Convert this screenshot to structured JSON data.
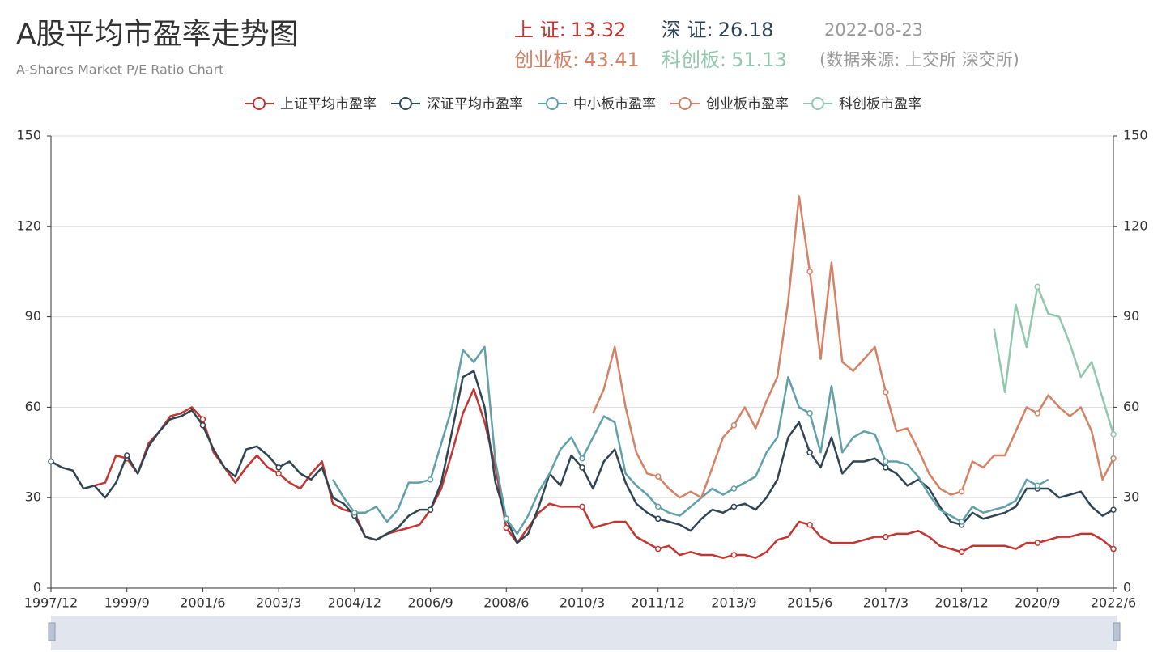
{
  "chart_data": {
    "type": "line",
    "title": "A股平均市盈率走势图",
    "subtitle": "A-Shares Market P/E Ratio Chart",
    "stats": [
      {
        "label": "上 证:",
        "value": 13.32,
        "color": "#c23531"
      },
      {
        "label": "深 证:",
        "value": 26.18,
        "color": "#2f4554"
      },
      {
        "label": "创业板:",
        "value": 43.41,
        "color": "#d48265"
      },
      {
        "label": "科创板:",
        "value": 51.13,
        "color": "#91c7ae"
      }
    ],
    "date": "2022-08-23",
    "source": "(数据来源: 上交所 深交所)",
    "categories": [
      "1997/12",
      null,
      null,
      null,
      null,
      null,
      null,
      "1999/9",
      null,
      null,
      null,
      null,
      null,
      null,
      "2001/6",
      null,
      null,
      null,
      null,
      null,
      null,
      "2003/3",
      null,
      null,
      null,
      null,
      null,
      null,
      "2004/12",
      null,
      null,
      null,
      null,
      null,
      null,
      "2006/9",
      null,
      null,
      null,
      null,
      null,
      null,
      "2008/6",
      null,
      null,
      null,
      null,
      null,
      null,
      "2010/3",
      null,
      null,
      null,
      null,
      null,
      null,
      "2011/12",
      null,
      null,
      null,
      null,
      null,
      null,
      "2013/9",
      null,
      null,
      null,
      null,
      null,
      null,
      "2015/6",
      null,
      null,
      null,
      null,
      null,
      null,
      "2017/3",
      null,
      null,
      null,
      null,
      null,
      null,
      "2018/12",
      null,
      null,
      null,
      null,
      null,
      null,
      "2020/9",
      null,
      null,
      null,
      null,
      null,
      null,
      "2022/6"
    ],
    "ylim": [
      0,
      150
    ],
    "yticks": [
      0,
      30,
      60,
      90,
      120,
      150
    ],
    "y2lim": [
      0,
      150
    ],
    "y2ticks": [
      0,
      30,
      60,
      90,
      120,
      150
    ],
    "grid": true,
    "legend": "top",
    "series": [
      {
        "name": "上证平均市盈率",
        "color": "#c23531",
        "values": [
          null,
          null,
          null,
          null,
          34,
          35,
          44,
          43,
          38,
          48,
          52,
          57,
          58,
          60,
          56,
          45,
          40,
          35,
          40,
          44,
          40,
          38,
          35,
          33,
          38,
          42,
          28,
          26,
          25,
          17,
          16,
          18,
          19,
          20,
          21,
          26,
          33,
          45,
          58,
          66,
          55,
          40,
          20,
          15,
          20,
          25,
          28,
          27,
          27,
          27,
          20,
          21,
          22,
          22,
          17,
          15,
          13,
          14,
          11,
          12,
          11,
          11,
          10,
          11,
          11,
          10,
          12,
          16,
          17,
          22,
          21,
          17,
          15,
          15,
          15,
          16,
          17,
          17,
          18,
          18,
          19,
          17,
          14,
          13,
          12,
          14,
          14,
          14,
          14,
          13,
          15,
          15,
          16,
          17,
          17,
          18,
          18,
          16,
          13
        ]
      },
      {
        "name": "深证平均市盈率",
        "color": "#2f4554",
        "values": [
          42,
          40,
          39,
          33,
          34,
          30,
          35,
          44,
          38,
          47,
          52,
          56,
          57,
          59,
          54,
          46,
          40,
          37,
          46,
          47,
          44,
          40,
          42,
          38,
          36,
          40,
          30,
          28,
          24,
          17,
          16,
          18,
          20,
          24,
          26,
          26,
          35,
          52,
          70,
          72,
          60,
          35,
          23,
          15,
          18,
          27,
          38,
          34,
          44,
          40,
          33,
          42,
          46,
          35,
          28,
          25,
          23,
          22,
          21,
          19,
          23,
          26,
          25,
          27,
          28,
          26,
          30,
          36,
          50,
          55,
          45,
          40,
          50,
          38,
          42,
          42,
          43,
          40,
          38,
          34,
          36,
          33,
          27,
          22,
          21,
          25,
          23,
          24,
          25,
          27,
          33,
          33,
          33,
          30,
          31,
          32,
          27,
          24,
          26
        ]
      },
      {
        "name": "中小板市盈率",
        "color": "#61a0a8",
        "values": [
          null,
          null,
          null,
          null,
          null,
          null,
          null,
          null,
          null,
          null,
          null,
          null,
          null,
          null,
          null,
          null,
          null,
          null,
          null,
          null,
          null,
          null,
          null,
          null,
          null,
          null,
          36,
          30,
          25,
          25,
          27,
          22,
          26,
          35,
          35,
          36,
          48,
          60,
          79,
          75,
          80,
          42,
          23,
          18,
          24,
          32,
          38,
          46,
          50,
          43,
          50,
          57,
          55,
          38,
          34,
          31,
          27,
          25,
          24,
          27,
          30,
          33,
          31,
          33,
          35,
          37,
          45,
          50,
          70,
          60,
          58,
          45,
          67,
          45,
          50,
          52,
          51,
          42,
          42,
          41,
          37,
          31,
          26,
          24,
          22,
          27,
          25,
          26,
          27,
          29,
          36,
          34,
          36,
          null,
          null,
          null,
          null,
          null,
          null
        ]
      },
      {
        "name": "创业板市盈率",
        "color": "#d48265",
        "values": [
          null,
          null,
          null,
          null,
          null,
          null,
          null,
          null,
          null,
          null,
          null,
          null,
          null,
          null,
          null,
          null,
          null,
          null,
          null,
          null,
          null,
          null,
          null,
          null,
          null,
          null,
          null,
          null,
          null,
          null,
          null,
          null,
          null,
          null,
          null,
          null,
          null,
          null,
          null,
          null,
          null,
          null,
          null,
          null,
          null,
          null,
          null,
          null,
          null,
          null,
          58,
          66,
          80,
          60,
          45,
          38,
          37,
          33,
          30,
          32,
          30,
          40,
          50,
          54,
          60,
          53,
          62,
          70,
          95,
          130,
          105,
          76,
          108,
          75,
          72,
          76,
          80,
          65,
          52,
          53,
          46,
          38,
          33,
          31,
          32,
          42,
          40,
          44,
          44,
          52,
          60,
          58,
          64,
          60,
          57,
          60,
          52,
          36,
          43
        ]
      },
      {
        "name": "科创板市盈率",
        "color": "#91c7ae",
        "values": [
          null,
          null,
          null,
          null,
          null,
          null,
          null,
          null,
          null,
          null,
          null,
          null,
          null,
          null,
          null,
          null,
          null,
          null,
          null,
          null,
          null,
          null,
          null,
          null,
          null,
          null,
          null,
          null,
          null,
          null,
          null,
          null,
          null,
          null,
          null,
          null,
          null,
          null,
          null,
          null,
          null,
          null,
          null,
          null,
          null,
          null,
          null,
          null,
          null,
          null,
          null,
          null,
          null,
          null,
          null,
          null,
          null,
          null,
          null,
          null,
          null,
          null,
          null,
          null,
          null,
          null,
          null,
          null,
          null,
          null,
          null,
          null,
          null,
          null,
          null,
          null,
          null,
          null,
          null,
          null,
          null,
          null,
          null,
          null,
          null,
          null,
          null,
          86,
          65,
          94,
          80,
          100,
          91,
          90,
          81,
          70,
          75,
          63,
          51
        ]
      }
    ]
  }
}
